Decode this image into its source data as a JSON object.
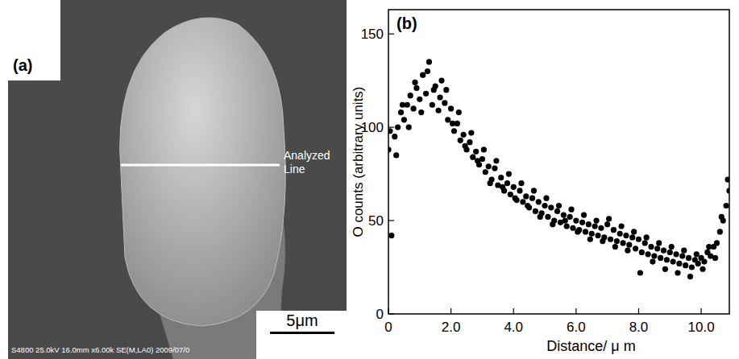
{
  "panel_a": {
    "label": "(a)",
    "annotation": "Analyzed Line",
    "scale_bar": "5μm",
    "info": "S4800 25.0kV 16.0mm x6.00k SE(M,LA0) 2009/07/0"
  },
  "chart_data": {
    "type": "scatter",
    "title": "(b)",
    "x_label": "Distance/ μ m",
    "y_label": "O counts (arbitrary units)",
    "color": "#000000",
    "marker": "circle",
    "grid": false,
    "xlim": [
      0,
      10.9
    ],
    "ylim": [
      0,
      163
    ],
    "xticks": [
      0,
      {
        "value": 2,
        "label": "2.0"
      },
      {
        "value": 4,
        "label": "4.0"
      },
      {
        "value": 6,
        "label": "6.0"
      },
      {
        "value": 8,
        "label": "8.0"
      },
      {
        "value": 10,
        "label": "10.0"
      }
    ],
    "yticks": [
      0,
      50,
      100,
      150
    ],
    "x": [
      0,
      0.1,
      0.2,
      0.3,
      0.4,
      0.5,
      0.6,
      0.7,
      0.8,
      0.9,
      1,
      1.1,
      1.2,
      1.3,
      1.4,
      1.5,
      1.6,
      1.7,
      1.8,
      1.9,
      2,
      2.1,
      2.2,
      2.3,
      2.4,
      2.5,
      2.6,
      2.7,
      2.8,
      2.9,
      3,
      3.1,
      3.2,
      3.3,
      3.4,
      3.5,
      3.6,
      3.7,
      3.8,
      3.9,
      4,
      4.1,
      4.2,
      4.3,
      4.4,
      4.5,
      4.6,
      4.7,
      4.8,
      4.9,
      5,
      5.1,
      5.2,
      5.3,
      5.4,
      5.5,
      5.6,
      5.7,
      5.8,
      5.9,
      6,
      6.1,
      6.2,
      6.3,
      6.4,
      6.5,
      6.6,
      6.7,
      6.8,
      6.9,
      7,
      7.1,
      7.2,
      7.3,
      7.4,
      7.5,
      7.6,
      7.7,
      7.8,
      7.9,
      8,
      8.1,
      8.2,
      8.3,
      8.4,
      8.5,
      8.6,
      8.7,
      8.8,
      8.9,
      9,
      9.1,
      9.2,
      9.3,
      9.4,
      9.5,
      9.6,
      9.7,
      9.8,
      9.9,
      10,
      10.1,
      10.2,
      10.3,
      10.4,
      10.5,
      10.6,
      10.7,
      10.8,
      10.9,
      0.05,
      0.25,
      0.45,
      0.65,
      0.85,
      1.05,
      1.25,
      1.45,
      1.65,
      1.85,
      2.05,
      2.25,
      2.45,
      2.65,
      2.85,
      3.05,
      3.25,
      3.45,
      3.65,
      3.85,
      4.05,
      4.25,
      4.45,
      4.65,
      4.85,
      5.05,
      5.25,
      5.45,
      5.65,
      5.85,
      6.05,
      6.25,
      6.45,
      6.65,
      6.85,
      7.05,
      7.25,
      7.45,
      7.65,
      7.85,
      8.05,
      8.25,
      8.45,
      8.65,
      8.85,
      9.05,
      9.25,
      9.45,
      9.65,
      9.85,
      10.05,
      10.25,
      10.45,
      10.65,
      10.85
    ],
    "values": [
      88,
      42,
      95,
      100,
      108,
      104,
      112,
      117,
      110,
      121,
      115,
      128,
      118,
      135,
      112,
      122,
      109,
      125,
      113,
      104,
      110,
      98,
      102,
      93,
      96,
      88,
      92,
      84,
      87,
      80,
      83,
      76,
      79,
      72,
      78,
      69,
      73,
      66,
      70,
      64,
      68,
      61,
      66,
      60,
      63,
      57,
      62,
      55,
      60,
      54,
      58,
      52,
      57,
      50,
      55,
      49,
      53,
      47,
      52,
      46,
      50,
      45,
      49,
      44,
      48,
      43,
      47,
      42,
      46,
      41,
      48,
      40,
      45,
      39,
      43,
      38,
      42,
      37,
      41,
      35,
      40,
      33,
      38,
      32,
      36,
      31,
      35,
      30,
      34,
      29,
      33,
      28,
      32,
      27,
      31,
      26,
      30,
      25,
      29,
      27,
      30,
      28,
      33,
      31,
      36,
      38,
      44,
      50,
      58,
      66,
      98,
      85,
      112,
      100,
      124,
      108,
      130,
      120,
      116,
      120,
      102,
      108,
      90,
      97,
      82,
      88,
      70,
      82,
      68,
      75,
      62,
      70,
      58,
      66,
      52,
      62,
      48,
      58,
      50,
      56,
      44,
      53,
      40,
      50,
      39,
      51,
      36,
      47,
      34,
      44,
      22,
      41,
      28,
      38,
      24,
      36,
      22,
      34,
      20,
      32,
      24,
      36,
      30,
      52,
      72
    ]
  }
}
